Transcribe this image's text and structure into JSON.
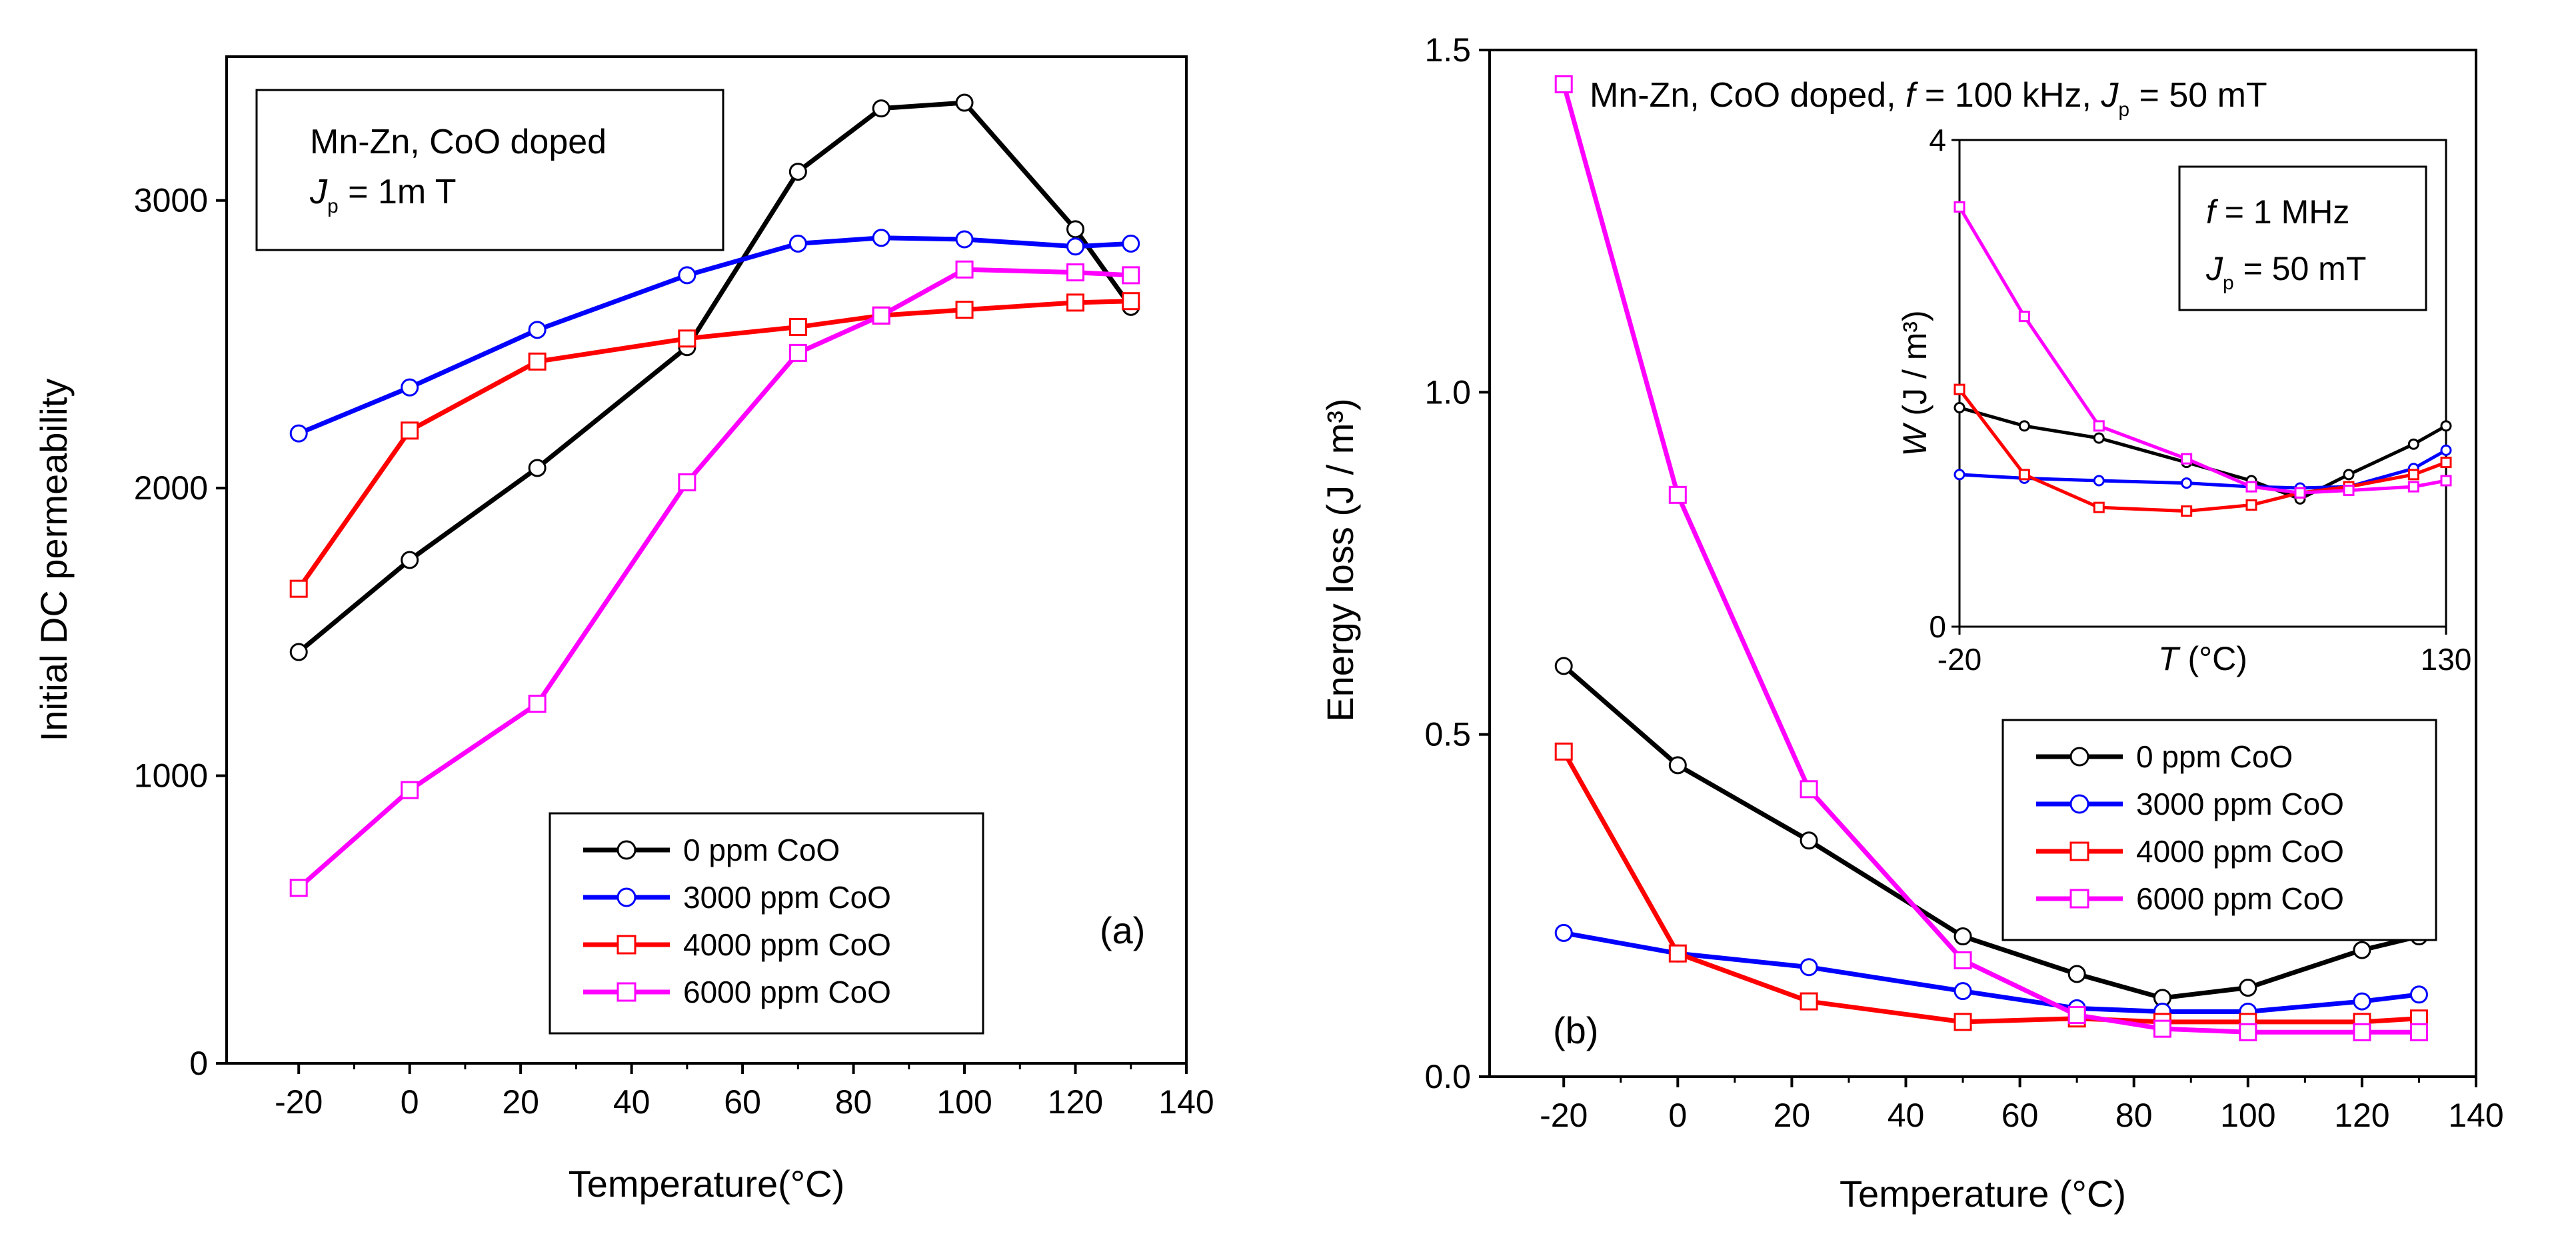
{
  "chart_data": [
    {
      "panel": "a",
      "type": "line",
      "title": "",
      "xlabel": "Temperature(°C)",
      "ylabel": "Initial DC permeability",
      "xlim": [
        -33,
        140
      ],
      "ylim": [
        0,
        3500
      ],
      "x_ticks": [
        -20,
        0,
        20,
        40,
        60,
        80,
        100,
        120,
        140
      ],
      "y_ticks": [
        0,
        1000,
        2000,
        3000
      ],
      "annotation_line1": "Mn-Zn, CoO doped",
      "annotation_J": "J",
      "annotation_J_sub": "p",
      "annotation_rest": " = 1m T",
      "panel_label": "(a)",
      "legend_position": "bottom-right",
      "series": [
        {
          "name": "0 ppm CoO",
          "color": "#000000",
          "marker": "circle",
          "x": [
            -20,
            0,
            23,
            50,
            70,
            85,
            100,
            120,
            130
          ],
          "y": [
            1430,
            1750,
            2070,
            2490,
            3100,
            3320,
            3340,
            2900,
            2630
          ]
        },
        {
          "name": "3000 ppm CoO",
          "color": "#0000ff",
          "marker": "circle",
          "x": [
            -20,
            0,
            23,
            50,
            70,
            85,
            100,
            120,
            130
          ],
          "y": [
            2190,
            2350,
            2550,
            2740,
            2850,
            2870,
            2865,
            2840,
            2850
          ]
        },
        {
          "name": "4000 ppm CoO",
          "color": "#ff0000",
          "marker": "square",
          "x": [
            -20,
            0,
            23,
            50,
            70,
            85,
            100,
            120,
            130
          ],
          "y": [
            1650,
            2200,
            2440,
            2520,
            2560,
            2600,
            2620,
            2645,
            2650
          ]
        },
        {
          "name": "6000 ppm CoO",
          "color": "#ff00ff",
          "marker": "square",
          "x": [
            -20,
            0,
            23,
            50,
            70,
            85,
            100,
            120,
            130
          ],
          "y": [
            610,
            950,
            1250,
            2020,
            2470,
            2600,
            2760,
            2750,
            2740
          ]
        }
      ]
    },
    {
      "panel": "b",
      "type": "line",
      "title": "",
      "xlabel": "Temperature (°C)",
      "ylabel": "Energy loss  (J / m³)",
      "xlim": [
        -33,
        140
      ],
      "ylim": [
        0,
        1.5
      ],
      "x_ticks": [
        -20,
        0,
        20,
        40,
        60,
        80,
        100,
        120,
        140
      ],
      "y_ticks": [
        0.0,
        0.5,
        1.0,
        1.5
      ],
      "y_tick_labels": [
        "0.0",
        "0.5",
        "1.0",
        "1.5"
      ],
      "annotation_prefix": "Mn-Zn, CoO doped, ",
      "annotation_f": "f",
      "annotation_f_rest": " = 100 kHz, ",
      "annotation_J": "J",
      "annotation_J_sub": "p",
      "annotation_J_rest": " = 50 mT",
      "panel_label": "(b)",
      "legend_position": "center-right",
      "series": [
        {
          "name": "0 ppm CoO",
          "color": "#000000",
          "marker": "circle",
          "x": [
            -20,
            0,
            23,
            50,
            70,
            85,
            100,
            120,
            130
          ],
          "y": [
            0.6,
            0.455,
            0.345,
            0.205,
            0.15,
            0.115,
            0.13,
            0.185,
            0.205
          ]
        },
        {
          "name": "3000 ppm CoO",
          "color": "#0000ff",
          "marker": "circle",
          "x": [
            -20,
            0,
            23,
            50,
            70,
            85,
            100,
            120,
            130
          ],
          "y": [
            0.21,
            0.18,
            0.16,
            0.125,
            0.1,
            0.095,
            0.095,
            0.11,
            0.12
          ]
        },
        {
          "name": "4000 ppm CoO",
          "color": "#ff0000",
          "marker": "square",
          "x": [
            -20,
            0,
            23,
            50,
            70,
            85,
            100,
            120,
            130
          ],
          "y": [
            0.475,
            0.18,
            0.11,
            0.08,
            0.085,
            0.08,
            0.08,
            0.08,
            0.085
          ]
        },
        {
          "name": "6000 ppm CoO",
          "color": "#ff00ff",
          "marker": "square",
          "x": [
            -20,
            0,
            23,
            50,
            70,
            85,
            100,
            120,
            130
          ],
          "y": [
            1.45,
            0.85,
            0.42,
            0.17,
            0.09,
            0.07,
            0.065,
            0.065,
            0.065
          ]
        }
      ]
    },
    {
      "panel": "b-inset",
      "type": "line",
      "title": "",
      "xlabel_T": "T",
      "xlabel_rest": " (°C)",
      "ylabel_W": "W",
      "ylabel_rest": " (J / m³)",
      "xlim": [
        -20,
        130
      ],
      "ylim": [
        0,
        4
      ],
      "x_tick_labels": [
        {
          "v": -20,
          "t": "-20"
        },
        {
          "v": 130,
          "t": "130"
        }
      ],
      "y_tick_labels": [
        {
          "v": 0,
          "t": "0"
        },
        {
          "v": 4,
          "t": "4"
        }
      ],
      "box_f": "f",
      "box_f_rest": " = 1 MHz",
      "box_J": "J",
      "box_J_sub": "p",
      "box_J_rest": " = 50 mT",
      "series": [
        {
          "name": "0 ppm CoO",
          "color": "#000000",
          "marker": "circle",
          "x": [
            -20,
            0,
            23,
            50,
            70,
            85,
            100,
            120,
            130
          ],
          "y": [
            1.8,
            1.65,
            1.55,
            1.35,
            1.2,
            1.05,
            1.25,
            1.5,
            1.65
          ]
        },
        {
          "name": "3000 ppm CoO",
          "color": "#0000ff",
          "marker": "circle",
          "x": [
            -20,
            0,
            23,
            50,
            70,
            85,
            100,
            120,
            130
          ],
          "y": [
            1.25,
            1.22,
            1.2,
            1.18,
            1.15,
            1.14,
            1.15,
            1.3,
            1.45
          ]
        },
        {
          "name": "4000 ppm CoO",
          "color": "#ff0000",
          "marker": "square",
          "x": [
            -20,
            0,
            23,
            50,
            70,
            85,
            100,
            120,
            130
          ],
          "y": [
            1.95,
            1.25,
            0.98,
            0.95,
            1.0,
            1.1,
            1.15,
            1.25,
            1.35
          ]
        },
        {
          "name": "6000 ppm CoO",
          "color": "#ff00ff",
          "marker": "square",
          "x": [
            -20,
            0,
            23,
            50,
            70,
            85,
            100,
            120,
            130
          ],
          "y": [
            3.45,
            2.55,
            1.65,
            1.38,
            1.15,
            1.1,
            1.12,
            1.15,
            1.2
          ]
        }
      ]
    }
  ]
}
